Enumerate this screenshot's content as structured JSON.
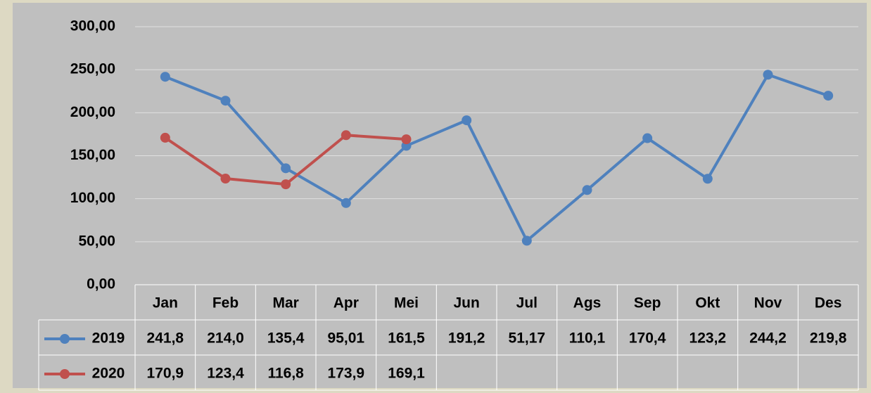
{
  "chart_data": {
    "type": "line",
    "categories": [
      "Jan",
      "Feb",
      "Mar",
      "Apr",
      "Mei",
      "Jun",
      "Jul",
      "Ags",
      "Sep",
      "Okt",
      "Nov",
      "Des"
    ],
    "series": [
      {
        "name": "2019",
        "color": "#4f81bd",
        "values": [
          241.8,
          214.0,
          135.4,
          95.01,
          161.5,
          191.2,
          51.17,
          110.1,
          170.4,
          123.2,
          244.2,
          219.8
        ],
        "value_labels": [
          "241,8",
          "214,0",
          "135,4",
          "95,01",
          "161,5",
          "191,2",
          "51,17",
          "110,1",
          "170,4",
          "123,2",
          "244,2",
          "219,8"
        ]
      },
      {
        "name": "2020",
        "color": "#c0504d",
        "values": [
          170.9,
          123.4,
          116.8,
          173.9,
          169.1,
          null,
          null,
          null,
          null,
          null,
          null,
          null
        ],
        "value_labels": [
          "170,9",
          "123,4",
          "116,8",
          "173,9",
          "169,1",
          null,
          null,
          null,
          null,
          null,
          null,
          null
        ]
      }
    ],
    "ylim": [
      0,
      300
    ],
    "yticks": [
      {
        "value": 0,
        "label": "0,00"
      },
      {
        "value": 50,
        "label": "50,00"
      },
      {
        "value": 100,
        "label": "100,00"
      },
      {
        "value": 150,
        "label": "150,00"
      },
      {
        "value": 200,
        "label": "200,00"
      },
      {
        "value": 250,
        "label": "250,00"
      },
      {
        "value": 300,
        "label": "300,00"
      }
    ],
    "grid": true,
    "data_table": true
  }
}
